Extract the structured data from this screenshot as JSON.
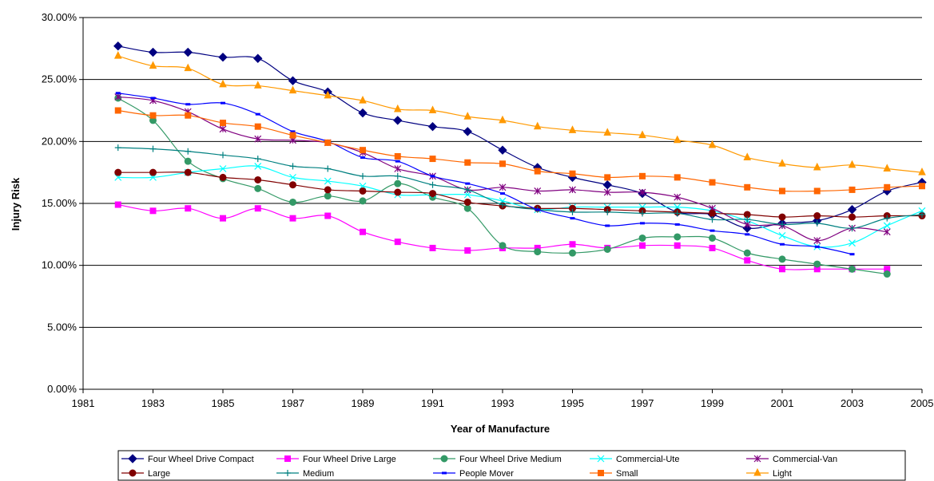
{
  "chart_data": {
    "type": "line",
    "title": "",
    "xlabel": "Year of Manufacture",
    "ylabel": "Injury Risk",
    "xlim": [
      1981,
      2005
    ],
    "ylim": [
      0,
      0.3
    ],
    "x_ticks": [
      "1981",
      "1983",
      "1985",
      "1987",
      "1989",
      "1991",
      "1993",
      "1995",
      "1997",
      "1999",
      "2001",
      "2003",
      "2005"
    ],
    "y_ticks": [
      "0.00%",
      "5.00%",
      "10.00%",
      "15.00%",
      "20.00%",
      "25.00%",
      "30.00%"
    ],
    "grid": "horizontal",
    "legend_position": "bottom",
    "series": [
      {
        "name": "Four Wheel Drive Compact",
        "color": "#000080",
        "marker": "diamond",
        "x": [
          1982,
          1983,
          1984,
          1985,
          1986,
          1987,
          1988,
          1989,
          1990,
          1991,
          1992,
          1993,
          1994,
          1995,
          1996,
          1997,
          1998,
          1999,
          2000,
          2001,
          2002,
          2003,
          2004,
          2005
        ],
        "values": [
          0.277,
          0.272,
          0.272,
          0.268,
          0.267,
          0.249,
          0.24,
          0.223,
          0.217,
          0.212,
          0.208,
          0.193,
          0.179,
          0.171,
          0.165,
          0.158,
          0.143,
          0.141,
          0.13,
          0.134,
          0.136,
          0.145,
          0.16,
          0.167
        ]
      },
      {
        "name": "Four Wheel Drive Large",
        "color": "#FF00FF",
        "marker": "square",
        "x": [
          1982,
          1983,
          1984,
          1985,
          1986,
          1987,
          1988,
          1989,
          1990,
          1991,
          1992,
          1993,
          1994,
          1995,
          1996,
          1997,
          1998,
          1999,
          2000,
          2001,
          2002,
          2003,
          2004
        ],
        "values": [
          0.149,
          0.144,
          0.146,
          0.138,
          0.146,
          0.138,
          0.14,
          0.127,
          0.119,
          0.114,
          0.112,
          0.114,
          0.114,
          0.117,
          0.114,
          0.116,
          0.116,
          0.114,
          0.104,
          0.097,
          0.097,
          0.097,
          0.097
        ]
      },
      {
        "name": "Four Wheel Drive Medium",
        "color": "#339966",
        "marker": "circle",
        "x": [
          1982,
          1983,
          1984,
          1985,
          1986,
          1987,
          1988,
          1989,
          1990,
          1991,
          1992,
          1993,
          1994,
          1995,
          1996,
          1997,
          1998,
          1999,
          2000,
          2001,
          2002,
          2003,
          2004
        ],
        "values": [
          0.235,
          0.217,
          0.184,
          0.17,
          0.162,
          0.151,
          0.156,
          0.152,
          0.166,
          0.155,
          0.146,
          0.116,
          0.111,
          0.11,
          0.113,
          0.122,
          0.123,
          0.122,
          0.11,
          0.105,
          0.101,
          0.097,
          0.093
        ]
      },
      {
        "name": "Commercial-Ute",
        "color": "#00FFFF",
        "marker": "x",
        "x": [
          1982,
          1983,
          1984,
          1985,
          1986,
          1987,
          1988,
          1989,
          1990,
          1991,
          1992,
          1993,
          1994,
          1995,
          1996,
          1997,
          1998,
          1999,
          2000,
          2001,
          2002,
          2003,
          2004,
          2005
        ],
        "values": [
          0.171,
          0.171,
          0.175,
          0.178,
          0.18,
          0.171,
          0.168,
          0.164,
          0.157,
          0.157,
          0.157,
          0.152,
          0.145,
          0.147,
          0.147,
          0.147,
          0.147,
          0.144,
          0.136,
          0.124,
          0.115,
          0.118,
          0.132,
          0.144
        ]
      },
      {
        "name": "Commercial-Van",
        "color": "#800080",
        "marker": "asterisk",
        "x": [
          1982,
          1983,
          1984,
          1985,
          1986,
          1987,
          1988,
          1989,
          1990,
          1991,
          1992,
          1993,
          1994,
          1995,
          1996,
          1997,
          1998,
          1999,
          2000,
          2001,
          2002,
          2003,
          2004
        ],
        "values": [
          0.236,
          0.233,
          0.224,
          0.21,
          0.202,
          0.201,
          0.199,
          0.191,
          0.178,
          0.172,
          0.161,
          0.163,
          0.16,
          0.161,
          0.159,
          0.159,
          0.155,
          0.146,
          0.133,
          0.132,
          0.12,
          0.13,
          0.127
        ]
      },
      {
        "name": "Large",
        "color": "#800000",
        "marker": "circle",
        "x": [
          1982,
          1983,
          1984,
          1985,
          1986,
          1987,
          1988,
          1989,
          1990,
          1991,
          1992,
          1993,
          1994,
          1995,
          1996,
          1997,
          1998,
          1999,
          2000,
          2001,
          2002,
          2003,
          2004,
          2005
        ],
        "values": [
          0.175,
          0.175,
          0.175,
          0.171,
          0.169,
          0.165,
          0.161,
          0.16,
          0.159,
          0.158,
          0.151,
          0.148,
          0.146,
          0.146,
          0.145,
          0.144,
          0.143,
          0.142,
          0.141,
          0.139,
          0.14,
          0.139,
          0.14,
          0.14
        ]
      },
      {
        "name": "Medium",
        "color": "#008080",
        "marker": "plus",
        "x": [
          1982,
          1983,
          1984,
          1985,
          1986,
          1987,
          1988,
          1989,
          1990,
          1991,
          1992,
          1993,
          1994,
          1995,
          1996,
          1997,
          1998,
          1999,
          2000,
          2001,
          2002,
          2003,
          2004,
          2005
        ],
        "values": [
          0.195,
          0.194,
          0.192,
          0.189,
          0.186,
          0.18,
          0.178,
          0.172,
          0.172,
          0.165,
          0.161,
          0.149,
          0.145,
          0.143,
          0.143,
          0.142,
          0.142,
          0.137,
          0.137,
          0.133,
          0.134,
          0.13,
          0.138,
          0.141
        ]
      },
      {
        "name": "People Mover",
        "color": "#0000FF",
        "marker": "dash",
        "x": [
          1982,
          1983,
          1984,
          1985,
          1986,
          1987,
          1988,
          1989,
          1990,
          1991,
          1992,
          1993,
          1994,
          1995,
          1996,
          1997,
          1998,
          1999,
          2000,
          2001,
          2002,
          2003
        ],
        "values": [
          0.239,
          0.235,
          0.23,
          0.231,
          0.222,
          0.208,
          0.2,
          0.187,
          0.184,
          0.172,
          0.166,
          0.158,
          0.145,
          0.138,
          0.132,
          0.134,
          0.133,
          0.128,
          0.125,
          0.117,
          0.115,
          0.109
        ]
      },
      {
        "name": "Small",
        "color": "#FF6600",
        "marker": "square",
        "x": [
          1982,
          1983,
          1984,
          1985,
          1986,
          1987,
          1988,
          1989,
          1990,
          1991,
          1992,
          1993,
          1994,
          1995,
          1996,
          1997,
          1998,
          1999,
          2000,
          2001,
          2002,
          2003,
          2004,
          2005
        ],
        "values": [
          0.225,
          0.221,
          0.221,
          0.215,
          0.212,
          0.205,
          0.199,
          0.193,
          0.188,
          0.186,
          0.183,
          0.182,
          0.176,
          0.174,
          0.171,
          0.172,
          0.171,
          0.167,
          0.163,
          0.16,
          0.16,
          0.161,
          0.163,
          0.164
        ]
      },
      {
        "name": "Light",
        "color": "#FF9900",
        "marker": "triangle",
        "x": [
          1982,
          1983,
          1984,
          1985,
          1986,
          1987,
          1988,
          1989,
          1990,
          1991,
          1992,
          1993,
          1994,
          1995,
          1996,
          1997,
          1998,
          1999,
          2000,
          2001,
          2002,
          2003,
          2004,
          2005
        ],
        "values": [
          0.269,
          0.261,
          0.259,
          0.246,
          0.245,
          0.241,
          0.237,
          0.233,
          0.226,
          0.225,
          0.22,
          0.217,
          0.212,
          0.209,
          0.207,
          0.205,
          0.201,
          0.197,
          0.187,
          0.182,
          0.179,
          0.181,
          0.178,
          0.175
        ]
      }
    ]
  }
}
